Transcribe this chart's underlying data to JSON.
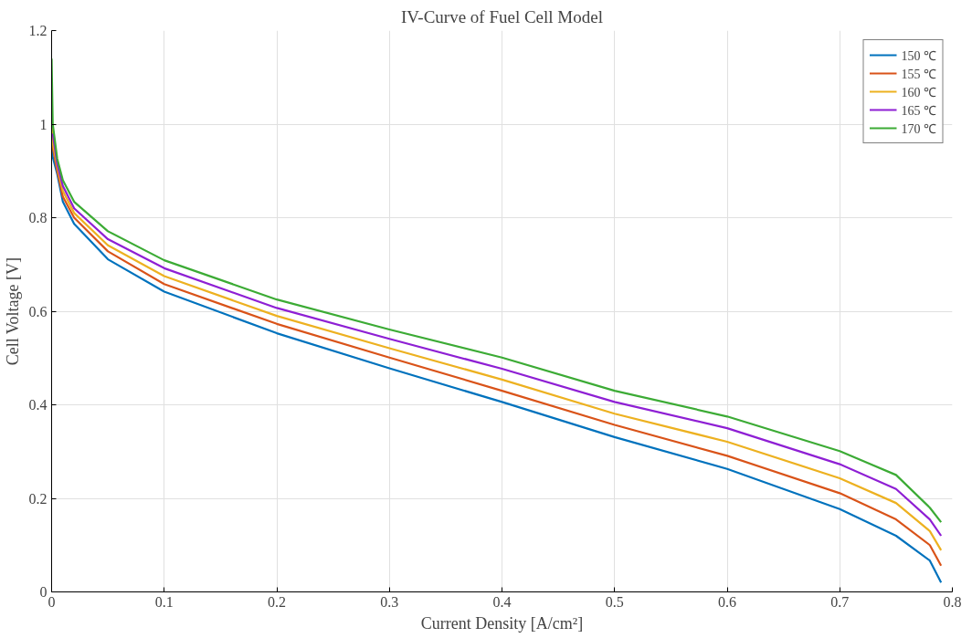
{
  "chart_data": {
    "type": "line",
    "title": "IV-Curve of Fuel Cell Model",
    "xlabel": "Current Density [A/cm²]",
    "ylabel": "Cell Voltage [V]",
    "x": [
      0,
      0.001,
      0.005,
      0.01,
      0.02,
      0.05,
      0.1,
      0.2,
      0.3,
      0.4,
      0.5,
      0.6,
      0.7,
      0.75,
      0.78,
      0.79
    ],
    "series": [
      {
        "name": "150 ℃",
        "color": "#0072bd",
        "values": [
          0.96,
          0.93,
          0.893,
          0.834,
          0.787,
          0.711,
          0.642,
          0.553,
          0.478,
          0.406,
          0.331,
          0.263,
          0.177,
          0.12,
          0.067,
          0.02
        ]
      },
      {
        "name": "155 ℃",
        "color": "#d95319",
        "values": [
          0.98,
          0.95,
          0.9,
          0.845,
          0.8,
          0.728,
          0.658,
          0.573,
          0.501,
          0.43,
          0.357,
          0.291,
          0.211,
          0.155,
          0.1,
          0.056
        ]
      },
      {
        "name": "160 ℃",
        "color": "#edb120",
        "values": [
          1.0,
          0.96,
          0.91,
          0.857,
          0.81,
          0.741,
          0.675,
          0.59,
          0.521,
          0.454,
          0.381,
          0.321,
          0.243,
          0.19,
          0.13,
          0.089
        ]
      },
      {
        "name": "165 ℃",
        "color": "#8e1fd4",
        "values": [
          null,
          0.98,
          0.915,
          0.868,
          0.82,
          0.754,
          0.692,
          0.607,
          0.541,
          0.477,
          0.406,
          0.35,
          0.273,
          0.22,
          0.155,
          0.12
        ]
      },
      {
        "name": "170 ℃",
        "color": "#3cab35",
        "values": [
          1.14,
          1.0,
          0.926,
          0.88,
          0.834,
          0.771,
          0.709,
          0.625,
          0.561,
          0.501,
          0.43,
          0.375,
          0.301,
          0.25,
          0.18,
          0.149
        ]
      }
    ],
    "xlim": [
      0,
      0.8
    ],
    "ylim": [
      0,
      1.2
    ],
    "xticks": [
      0,
      0.1,
      0.2,
      0.3,
      0.4,
      0.5,
      0.6,
      0.7,
      0.8
    ],
    "yticks": [
      0,
      0.2,
      0.4,
      0.6,
      0.8,
      1,
      1.2
    ],
    "grid": true,
    "legend": "top right",
    "marker": "none",
    "line_style": "solid"
  }
}
